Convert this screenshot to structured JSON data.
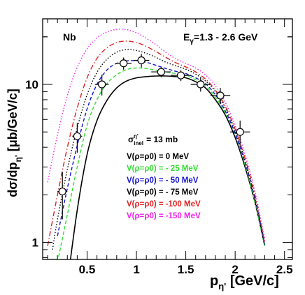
{
  "chart_data": {
    "type": "line",
    "label_left": "Nb",
    "label_right": "E_γ=1.3 - 2.6 GeV",
    "xlabel": "p_η' [GeV/c]",
    "ylabel": "dσ/dp_η' [μb/GeV/c]",
    "x_ticks": [
      0.5,
      1,
      1.5,
      2,
      2.5
    ],
    "x_tick_labels": [
      "0.5",
      "1",
      "1.5",
      "2",
      "2.5"
    ],
    "y_ticks": [
      1,
      10
    ],
    "y_tick_labels": [
      "1",
      "10"
    ],
    "xlim": [
      0.05,
      2.58
    ],
    "ylim": [
      0.78,
      26
    ],
    "y_scale": "log",
    "annotation": "σ_inel^η' = 13 mb",
    "series": [
      {
        "name": "V(ρ=ρ0) = 0 MeV",
        "color": "#000000",
        "dash": "solid",
        "x": [
          0.3,
          0.4,
          0.5,
          0.6,
          0.7,
          0.8,
          0.9,
          1.0,
          1.1,
          1.2,
          1.3,
          1.4,
          1.5,
          1.6,
          1.7,
          1.8,
          1.9,
          2.0,
          2.1,
          2.2,
          2.3
        ],
        "y": [
          0.55,
          1.6,
          3.6,
          5.9,
          7.9,
          9.5,
          10.5,
          11.0,
          11.2,
          11.3,
          11.3,
          11.2,
          11.0,
          10.4,
          9.5,
          8.0,
          6.4,
          4.6,
          3.0,
          1.8,
          0.95
        ]
      },
      {
        "name": "V(ρ=ρ0) = - 25 MeV",
        "color": "#33dd33",
        "dash": "dash",
        "x": [
          0.2,
          0.3,
          0.4,
          0.5,
          0.6,
          0.7,
          0.8,
          0.9,
          1.0,
          1.1,
          1.2,
          1.3,
          1.4,
          1.5,
          1.6,
          1.7,
          1.8,
          1.9,
          2.0,
          2.1,
          2.2,
          2.3
        ],
        "y": [
          0.75,
          1.5,
          3.0,
          5.5,
          8.0,
          10.1,
          11.5,
          12.4,
          12.7,
          12.6,
          12.3,
          12.0,
          11.7,
          11.4,
          10.7,
          9.8,
          8.3,
          6.6,
          4.8,
          3.1,
          1.8,
          0.95
        ]
      },
      {
        "name": "V(ρ=ρ0) = - 50 MeV",
        "color": "#1515cc",
        "dash": "dash",
        "x": [
          0.2,
          0.3,
          0.4,
          0.5,
          0.6,
          0.7,
          0.8,
          0.9,
          1.0,
          1.1,
          1.2,
          1.3,
          1.4,
          1.5,
          1.6,
          1.7,
          1.8,
          1.9,
          2.0,
          2.1,
          2.2,
          2.3
        ],
        "y": [
          1.1,
          2.2,
          4.1,
          7.0,
          10.0,
          12.3,
          13.6,
          14.1,
          14.1,
          13.8,
          13.2,
          12.6,
          12.1,
          11.7,
          11.0,
          10.1,
          8.6,
          6.8,
          4.9,
          3.2,
          1.9,
          0.97
        ]
      },
      {
        "name": "V(ρ=ρ0) = - 75 MeV",
        "color": "#000000",
        "dash": "dot",
        "x": [
          0.15,
          0.2,
          0.3,
          0.4,
          0.5,
          0.6,
          0.7,
          0.8,
          0.9,
          1.0,
          1.1,
          1.2,
          1.3,
          1.4,
          1.5,
          1.6,
          1.7,
          1.8,
          1.9,
          2.0,
          2.1,
          2.2,
          2.3
        ],
        "y": [
          0.9,
          1.4,
          2.9,
          5.3,
          8.6,
          11.9,
          14.4,
          16.0,
          16.6,
          16.4,
          15.7,
          14.8,
          13.8,
          13.1,
          12.5,
          11.6,
          10.5,
          9.0,
          7.1,
          5.1,
          3.3,
          1.9,
          1.0
        ]
      },
      {
        "name": "V(ρ=ρ0) = -100 MeV",
        "color": "#dd2222",
        "dash": "dashdot",
        "x": [
          0.1,
          0.2,
          0.3,
          0.4,
          0.5,
          0.6,
          0.7,
          0.8,
          0.9,
          1.0,
          1.1,
          1.2,
          1.3,
          1.4,
          1.5,
          1.6,
          1.7,
          1.8,
          1.9,
          2.0,
          2.1,
          2.2,
          2.3
        ],
        "y": [
          0.95,
          2.0,
          4.0,
          7.1,
          11.0,
          14.6,
          17.0,
          18.4,
          18.8,
          18.4,
          17.4,
          16.1,
          14.8,
          13.7,
          12.9,
          12.0,
          10.8,
          9.2,
          7.3,
          5.2,
          3.4,
          2.0,
          1.0
        ]
      },
      {
        "name": "V(ρ=ρ0) = -150 MeV",
        "color": "#ee22ee",
        "dash": "dot",
        "x": [
          0.1,
          0.2,
          0.3,
          0.4,
          0.5,
          0.6,
          0.7,
          0.8,
          0.9,
          1.0,
          1.1,
          1.2,
          1.3,
          1.4,
          1.5,
          1.6,
          1.7,
          1.8,
          1.9,
          2.0,
          2.1,
          2.2,
          2.3
        ],
        "y": [
          2.4,
          4.8,
          8.5,
          12.8,
          16.8,
          19.7,
          21.4,
          22.3,
          22.2,
          21.2,
          19.6,
          17.8,
          15.9,
          14.5,
          13.6,
          12.7,
          11.5,
          9.8,
          7.7,
          5.5,
          3.6,
          2.1,
          1.05
        ]
      }
    ],
    "data_points": {
      "x": [
        0.25,
        0.4,
        0.65,
        0.87,
        1.05,
        1.25,
        1.45,
        1.65,
        1.85,
        2.05
      ],
      "y": [
        2.1,
        4.7,
        10.0,
        13.6,
        14.2,
        12.0,
        11.4,
        10.0,
        8.5,
        5.0
      ],
      "xerr": [
        0.05,
        0.05,
        0.07,
        0.08,
        0.08,
        0.1,
        0.1,
        0.1,
        0.1,
        0.1
      ],
      "yerr_up": [
        0.7,
        1.0,
        1.5,
        1.2,
        1.4,
        0.9,
        0.9,
        1.0,
        1.0,
        0.9
      ],
      "yerr_down": [
        0.7,
        1.0,
        1.5,
        1.2,
        1.4,
        0.9,
        0.9,
        1.0,
        1.0,
        0.9
      ]
    }
  }
}
